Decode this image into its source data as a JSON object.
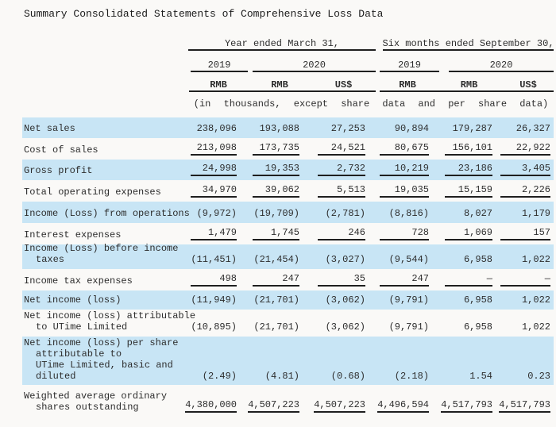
{
  "title": "Summary Consolidated Statements of Comprehensive Loss Data",
  "colors": {
    "row_highlight": "#c8e5f5",
    "text": "#2d2d2d",
    "rule": "#1f1f1f",
    "background": "#faf9f7"
  },
  "table": {
    "col_groups": [
      {
        "label": "Year ended March 31,",
        "years": [
          {
            "label": "2019",
            "currencies": [
              "RMB"
            ]
          },
          {
            "label": "2020",
            "currencies": [
              "RMB",
              "US$"
            ]
          }
        ]
      },
      {
        "label": "Six months ended September 30,",
        "years": [
          {
            "label": "2019",
            "currencies": [
              "RMB"
            ]
          },
          {
            "label": "2020",
            "currencies": [
              "RMB",
              "US$"
            ]
          }
        ]
      }
    ],
    "note": "(in thousands, except share data and per share data)",
    "rows": [
      {
        "label_lines": [
          "Net sales"
        ],
        "values": [
          "238,096",
          "193,088",
          "27,253",
          "90,894",
          "179,287",
          "26,327"
        ],
        "shaded": true,
        "underlined": false
      },
      {
        "label_lines": [
          "Cost of sales"
        ],
        "values": [
          "213,098",
          "173,735",
          "24,521",
          "80,675",
          "156,101",
          "22,922"
        ],
        "shaded": false,
        "underlined": true
      },
      {
        "label_lines": [
          "Gross profit"
        ],
        "values": [
          "24,998",
          "19,353",
          "2,732",
          "10,219",
          "23,186",
          "3,405"
        ],
        "shaded": true,
        "underlined": true
      },
      {
        "label_lines": [
          "Total operating expenses"
        ],
        "values": [
          "34,970",
          "39,062",
          "5,513",
          "19,035",
          "15,159",
          "2,226"
        ],
        "shaded": false,
        "underlined": true
      },
      {
        "label_lines": [
          "Income (Loss) from operations"
        ],
        "values": [
          "(9,972)",
          "(19,709)",
          "(2,781)",
          "(8,816)",
          "8,027",
          "1,179"
        ],
        "shaded": true,
        "underlined": false
      },
      {
        "label_lines": [
          "Interest expenses"
        ],
        "values": [
          "1,479",
          "1,745",
          "246",
          "728",
          "1,069",
          "157"
        ],
        "shaded": false,
        "underlined": true
      },
      {
        "label_lines": [
          "Income (Loss) before income",
          "taxes"
        ],
        "values": [
          "(11,451)",
          "(21,454)",
          "(3,027)",
          "(9,544)",
          "6,958",
          "1,022"
        ],
        "shaded": true,
        "underlined": false
      },
      {
        "label_lines": [
          "Income tax expenses"
        ],
        "values": [
          "498",
          "247",
          "35",
          "247",
          "—",
          "—"
        ],
        "shaded": false,
        "underlined": true
      },
      {
        "label_lines": [
          "Net income (loss)"
        ],
        "values": [
          "(11,949)",
          "(21,701)",
          "(3,062)",
          "(9,791)",
          "6,958",
          "1,022"
        ],
        "shaded": true,
        "underlined": false
      },
      {
        "label_lines": [
          "Net income (loss) attributable",
          "to UTime Limited"
        ],
        "values": [
          "(10,895)",
          "(21,701)",
          "(3,062)",
          "(9,791)",
          "6,958",
          "1,022"
        ],
        "shaded": false,
        "underlined": false
      },
      {
        "label_lines": [
          "Net income (loss) per share",
          "attributable to",
          "UTime Limited, basic and",
          "diluted"
        ],
        "values": [
          "(2.49)",
          "(4.81)",
          "(0.68)",
          "(2.18)",
          "1.54",
          "0.23"
        ],
        "shaded": true,
        "underlined": false
      },
      {
        "label_lines": [
          "Weighted average ordinary",
          "shares outstanding"
        ],
        "values": [
          "4,380,000",
          "4,507,223",
          "4,507,223",
          "4,496,594",
          "4,517,793",
          "4,517,793"
        ],
        "shaded": false,
        "underlined": true
      }
    ]
  }
}
